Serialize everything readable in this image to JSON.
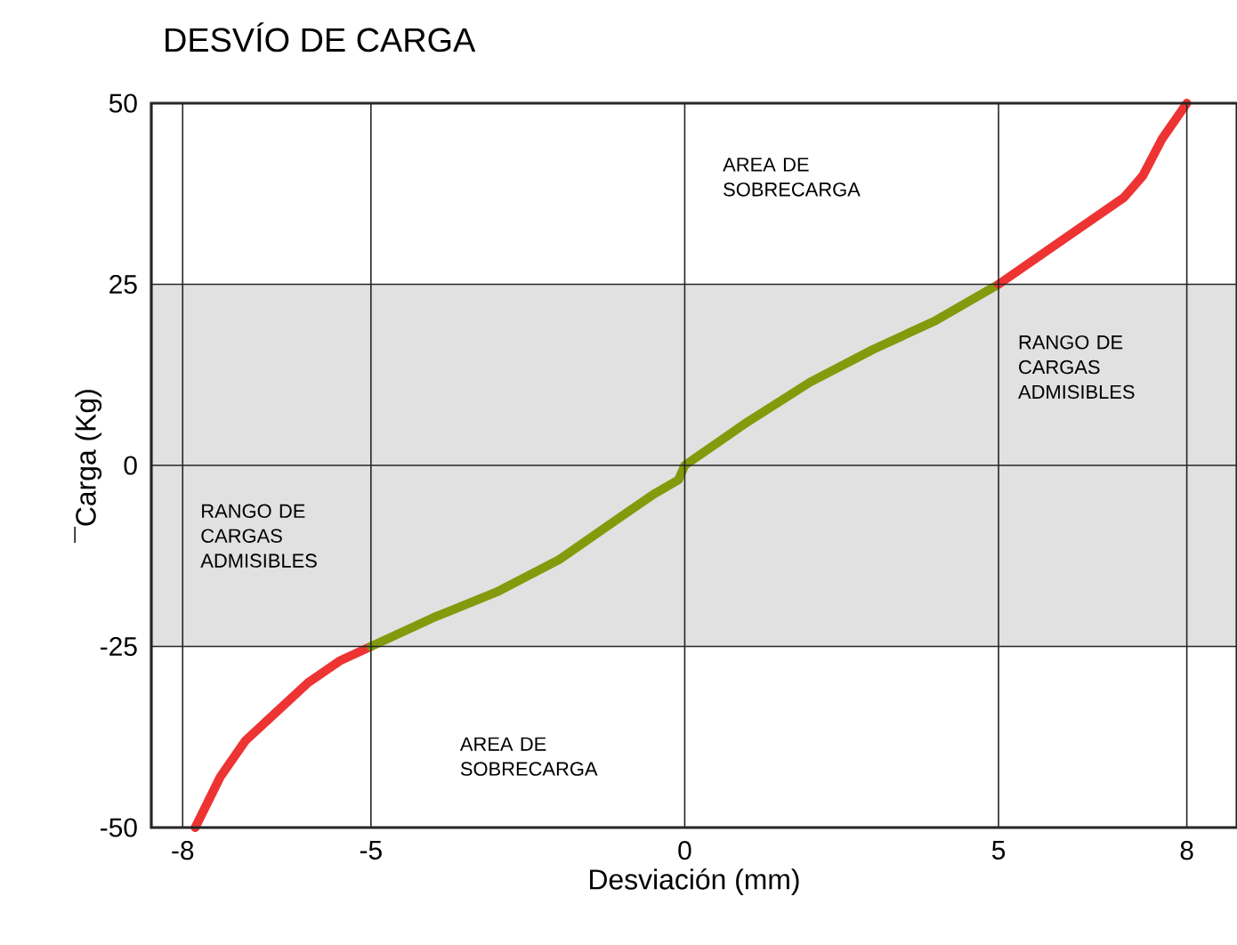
{
  "chart_data": {
    "type": "line",
    "title": "DESVÍO DE CARGA",
    "xlabel": "Desviación (mm)",
    "ylabel": "¯Carga (Kg)",
    "xlim": [
      -8.5,
      8.8
    ],
    "ylim": [
      -50,
      50
    ],
    "xticks": [
      -8,
      -5,
      0,
      5,
      8
    ],
    "yticks": [
      -50,
      -25,
      0,
      25,
      50
    ],
    "grid": true,
    "series": [
      {
        "color": "#ee3333",
        "x": [
          -7.8,
          -7.4,
          -7.0,
          -6.5,
          -6.0,
          -5.5,
          -5.0
        ],
        "values": [
          -50,
          -43,
          -38,
          -34,
          -30,
          -27,
          -25
        ]
      },
      {
        "color": "#849a0c",
        "x": [
          -5.0,
          -4.0,
          -3.0,
          -2.0,
          -1.5,
          -1.0,
          -0.5,
          -0.1,
          0.0,
          0.5,
          1.0,
          2.0,
          3.0,
          4.0,
          5.0
        ],
        "values": [
          -25,
          -21,
          -17.5,
          -13,
          -10,
          -7,
          -4,
          -2,
          0,
          3,
          6,
          11.5,
          16,
          20,
          25
        ]
      },
      {
        "color": "#ee3333",
        "x": [
          5.0,
          6.0,
          7.0,
          7.3,
          7.6,
          8.0
        ],
        "values": [
          25,
          31,
          37,
          40,
          45,
          50
        ]
      }
    ],
    "bands": [
      {
        "axis": "y",
        "from": -25,
        "to": 25,
        "color": "#e1e1e1"
      }
    ],
    "annotations": [
      "AREA DE SOBRECARGA",
      "AREA DE SOBRECARGA",
      "RANGO DE CARGAS ADMISIBLES",
      "RANGO DE CARGAS ADMISIBLES"
    ]
  }
}
